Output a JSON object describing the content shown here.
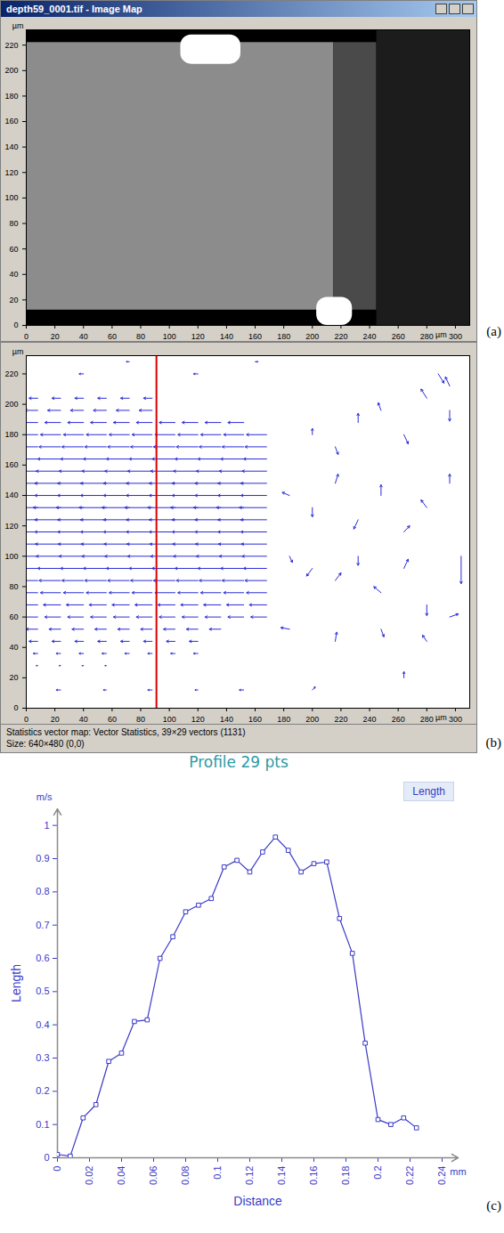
{
  "chart_data": [
    {
      "type": "image",
      "panel": "(a)",
      "title": "depth59_0001.tif - Image Map",
      "xlim": [
        0,
        310
      ],
      "ylim": [
        0,
        232
      ],
      "xticks": [
        0,
        20,
        40,
        60,
        80,
        100,
        120,
        140,
        160,
        180,
        200,
        220,
        240,
        260,
        280,
        300
      ],
      "yticks": [
        0,
        20,
        40,
        60,
        80,
        100,
        120,
        140,
        160,
        180,
        200,
        220
      ],
      "x_unit": "µm",
      "y_unit": "µm",
      "regions": [
        {
          "x1": 0,
          "x2": 310,
          "y1": 0,
          "y2": 232,
          "color": "#000000"
        },
        {
          "x1": 0,
          "x2": 215,
          "y1": 12,
          "y2": 222,
          "color": "#8c8c8c"
        },
        {
          "x1": 215,
          "x2": 245,
          "y1": 12,
          "y2": 222,
          "color": "#4a4a4a"
        },
        {
          "x1": 245,
          "x2": 310,
          "y1": 0,
          "y2": 232,
          "color": "#1c1c1c"
        },
        {
          "x1": 108,
          "x2": 150,
          "y1": 205,
          "y2": 228,
          "color": "#ffffff"
        },
        {
          "x1": 203,
          "x2": 228,
          "y1": 0,
          "y2": 22,
          "color": "#ffffff"
        }
      ]
    },
    {
      "type": "vector",
      "panel": "(b)",
      "color": "#2b2bd6",
      "xlim": [
        0,
        310
      ],
      "ylim": [
        0,
        232
      ],
      "xticks": [
        0,
        20,
        40,
        60,
        80,
        100,
        120,
        140,
        160,
        180,
        200,
        220,
        240,
        260,
        280,
        300
      ],
      "yticks": [
        0,
        20,
        40,
        60,
        80,
        100,
        120,
        140,
        160,
        180,
        200,
        220
      ],
      "x_unit": "µm",
      "y_unit": "µm",
      "profile_x": 91,
      "status": [
        "Statistics vector map: Vector Statistics, 39×29 vectors (1131)",
        "Size: 640×480 (0,0)"
      ],
      "jet_columns": [
        8,
        24,
        40,
        56,
        72,
        88,
        104,
        120,
        136,
        152,
        168
      ],
      "jet_rows": [
        {
          "y": 204,
          "u": -0.3,
          "x_end": 90
        },
        {
          "y": 196,
          "u": -0.45,
          "x_end": 100
        },
        {
          "y": 188,
          "u": -0.55,
          "x_end": 160
        },
        {
          "y": 180,
          "u": -0.7,
          "x_end": 170
        },
        {
          "y": 172,
          "u": -0.75,
          "x_end": 170
        },
        {
          "y": 164,
          "u": -0.8,
          "x_end": 170
        },
        {
          "y": 156,
          "u": -0.85,
          "x_end": 170
        },
        {
          "y": 148,
          "u": -0.9,
          "x_end": 170
        },
        {
          "y": 140,
          "u": -0.9,
          "x_end": 170
        },
        {
          "y": 132,
          "u": -0.95,
          "x_end": 170
        },
        {
          "y": 124,
          "u": -0.9,
          "x_end": 170
        },
        {
          "y": 116,
          "u": -0.9,
          "x_end": 170
        },
        {
          "y": 108,
          "u": -0.88,
          "x_end": 170
        },
        {
          "y": 100,
          "u": -0.85,
          "x_end": 170
        },
        {
          "y": 92,
          "u": -0.8,
          "x_end": 170
        },
        {
          "y": 84,
          "u": -0.75,
          "x_end": 170
        },
        {
          "y": 76,
          "u": -0.7,
          "x_end": 170
        },
        {
          "y": 68,
          "u": -0.6,
          "x_end": 170
        },
        {
          "y": 60,
          "u": -0.55,
          "x_end": 170
        },
        {
          "y": 52,
          "u": -0.4,
          "x_end": 150
        },
        {
          "y": 44,
          "u": -0.3,
          "x_end": 130
        },
        {
          "y": 36,
          "u": -0.15,
          "x_end": 120
        },
        {
          "y": 28,
          "u": -0.05,
          "x_end": 60
        }
      ],
      "vectors": [
        [
          200,
          180,
          0,
          0.2
        ],
        [
          216,
          172,
          0.1,
          -0.25
        ],
        [
          232,
          188,
          0,
          0.3
        ],
        [
          248,
          196,
          -0.1,
          0.25
        ],
        [
          264,
          180,
          0.15,
          -0.3
        ],
        [
          280,
          204,
          -0.2,
          0.3
        ],
        [
          296,
          196,
          0,
          -0.35
        ],
        [
          296,
          212,
          -0.15,
          0.3
        ],
        [
          288,
          220,
          0.2,
          -0.3
        ],
        [
          184,
          140,
          -0.25,
          0.1
        ],
        [
          200,
          132,
          0,
          -0.3
        ],
        [
          216,
          148,
          0.1,
          0.3
        ],
        [
          232,
          124,
          -0.15,
          -0.3
        ],
        [
          248,
          140,
          0,
          0.35
        ],
        [
          264,
          116,
          0.2,
          0.2
        ],
        [
          280,
          132,
          -0.2,
          0.25
        ],
        [
          296,
          148,
          0,
          0.3
        ],
        [
          184,
          100,
          0.1,
          -0.2
        ],
        [
          200,
          92,
          -0.2,
          -0.25
        ],
        [
          216,
          84,
          0.2,
          0.25
        ],
        [
          232,
          100,
          0,
          -0.3
        ],
        [
          248,
          76,
          -0.25,
          0.2
        ],
        [
          264,
          92,
          0.15,
          0.3
        ],
        [
          280,
          68,
          0,
          -0.35
        ],
        [
          304,
          100,
          0,
          -0.9
        ],
        [
          184,
          52,
          -0.3,
          0.05
        ],
        [
          216,
          44,
          0.05,
          0.3
        ],
        [
          248,
          52,
          0.1,
          -0.25
        ],
        [
          280,
          44,
          -0.15,
          0.2
        ],
        [
          296,
          60,
          0.3,
          0.1
        ],
        [
          24,
          12,
          -0.15,
          0
        ],
        [
          56,
          12,
          -0.1,
          0
        ],
        [
          88,
          12,
          -0.15,
          0
        ],
        [
          120,
          12,
          -0.1,
          0
        ],
        [
          152,
          12,
          -0.15,
          0
        ],
        [
          200,
          12,
          0.1,
          0.1
        ],
        [
          264,
          20,
          0,
          0.2
        ],
        [
          40,
          220,
          -0.15,
          0
        ],
        [
          72,
          228,
          -0.1,
          0
        ],
        [
          120,
          220,
          -0.15,
          0
        ],
        [
          160,
          228,
          0.1,
          0
        ]
      ]
    },
    {
      "type": "line",
      "panel": "(c)",
      "title": "Profile 29 pts",
      "x_label": "Distance",
      "y_label": "Length",
      "x_unit": "mm",
      "y_unit": "m/s",
      "xlim": [
        0,
        0.25
      ],
      "ylim": [
        0,
        1.05
      ],
      "xticks": [
        0,
        0.02,
        0.04,
        0.06,
        0.08,
        0.1,
        0.12,
        0.14,
        0.16,
        0.18,
        0.2,
        0.22,
        0.24
      ],
      "yticks": [
        0,
        0.1,
        0.2,
        0.3,
        0.4,
        0.5,
        0.6,
        0.7,
        0.8,
        0.9,
        1
      ],
      "grid": false,
      "legend": "top-right",
      "x": [
        0,
        0.008,
        0.016,
        0.024,
        0.032,
        0.04,
        0.048,
        0.056,
        0.064,
        0.072,
        0.08,
        0.088,
        0.096,
        0.104,
        0.112,
        0.12,
        0.128,
        0.136,
        0.144,
        0.152,
        0.16,
        0.168,
        0.176,
        0.184,
        0.192,
        0.2,
        0.208,
        0.216,
        0.224
      ],
      "series": [
        {
          "name": "Length",
          "color": "#3a3ac8",
          "marker": "square",
          "values": [
            0.01,
            0.005,
            0.12,
            0.16,
            0.29,
            0.315,
            0.41,
            0.415,
            0.6,
            0.665,
            0.74,
            0.76,
            0.78,
            0.875,
            0.895,
            0.86,
            0.92,
            0.965,
            0.925,
            0.86,
            0.885,
            0.89,
            0.72,
            0.615,
            0.345,
            0.115,
            0.1,
            0.12,
            0.09
          ]
        }
      ]
    }
  ]
}
